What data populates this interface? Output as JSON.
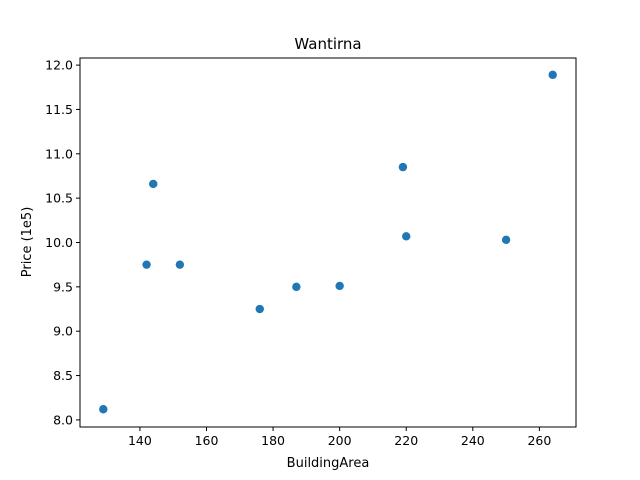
{
  "chart_data": {
    "type": "scatter",
    "title": "Wantirna",
    "xlabel": "BuildingArea",
    "ylabel": "Price (1e5)",
    "xlim": [
      122,
      271
    ],
    "ylim": [
      7.92,
      12.08
    ],
    "x_ticks": [
      140,
      160,
      180,
      200,
      220,
      240,
      260
    ],
    "y_ticks": [
      8.0,
      8.5,
      9.0,
      9.5,
      10.0,
      10.5,
      11.0,
      11.5,
      12.0
    ],
    "grid": false,
    "marker_color": "#1f77b4",
    "series": [
      {
        "points": [
          {
            "x": 129,
            "y": 8.12
          },
          {
            "x": 142,
            "y": 9.75
          },
          {
            "x": 144,
            "y": 10.66
          },
          {
            "x": 152,
            "y": 9.75
          },
          {
            "x": 176,
            "y": 9.25
          },
          {
            "x": 187,
            "y": 9.5
          },
          {
            "x": 200,
            "y": 9.51
          },
          {
            "x": 219,
            "y": 10.85
          },
          {
            "x": 220,
            "y": 10.07
          },
          {
            "x": 250,
            "y": 10.03
          },
          {
            "x": 264,
            "y": 11.89
          }
        ]
      }
    ]
  }
}
